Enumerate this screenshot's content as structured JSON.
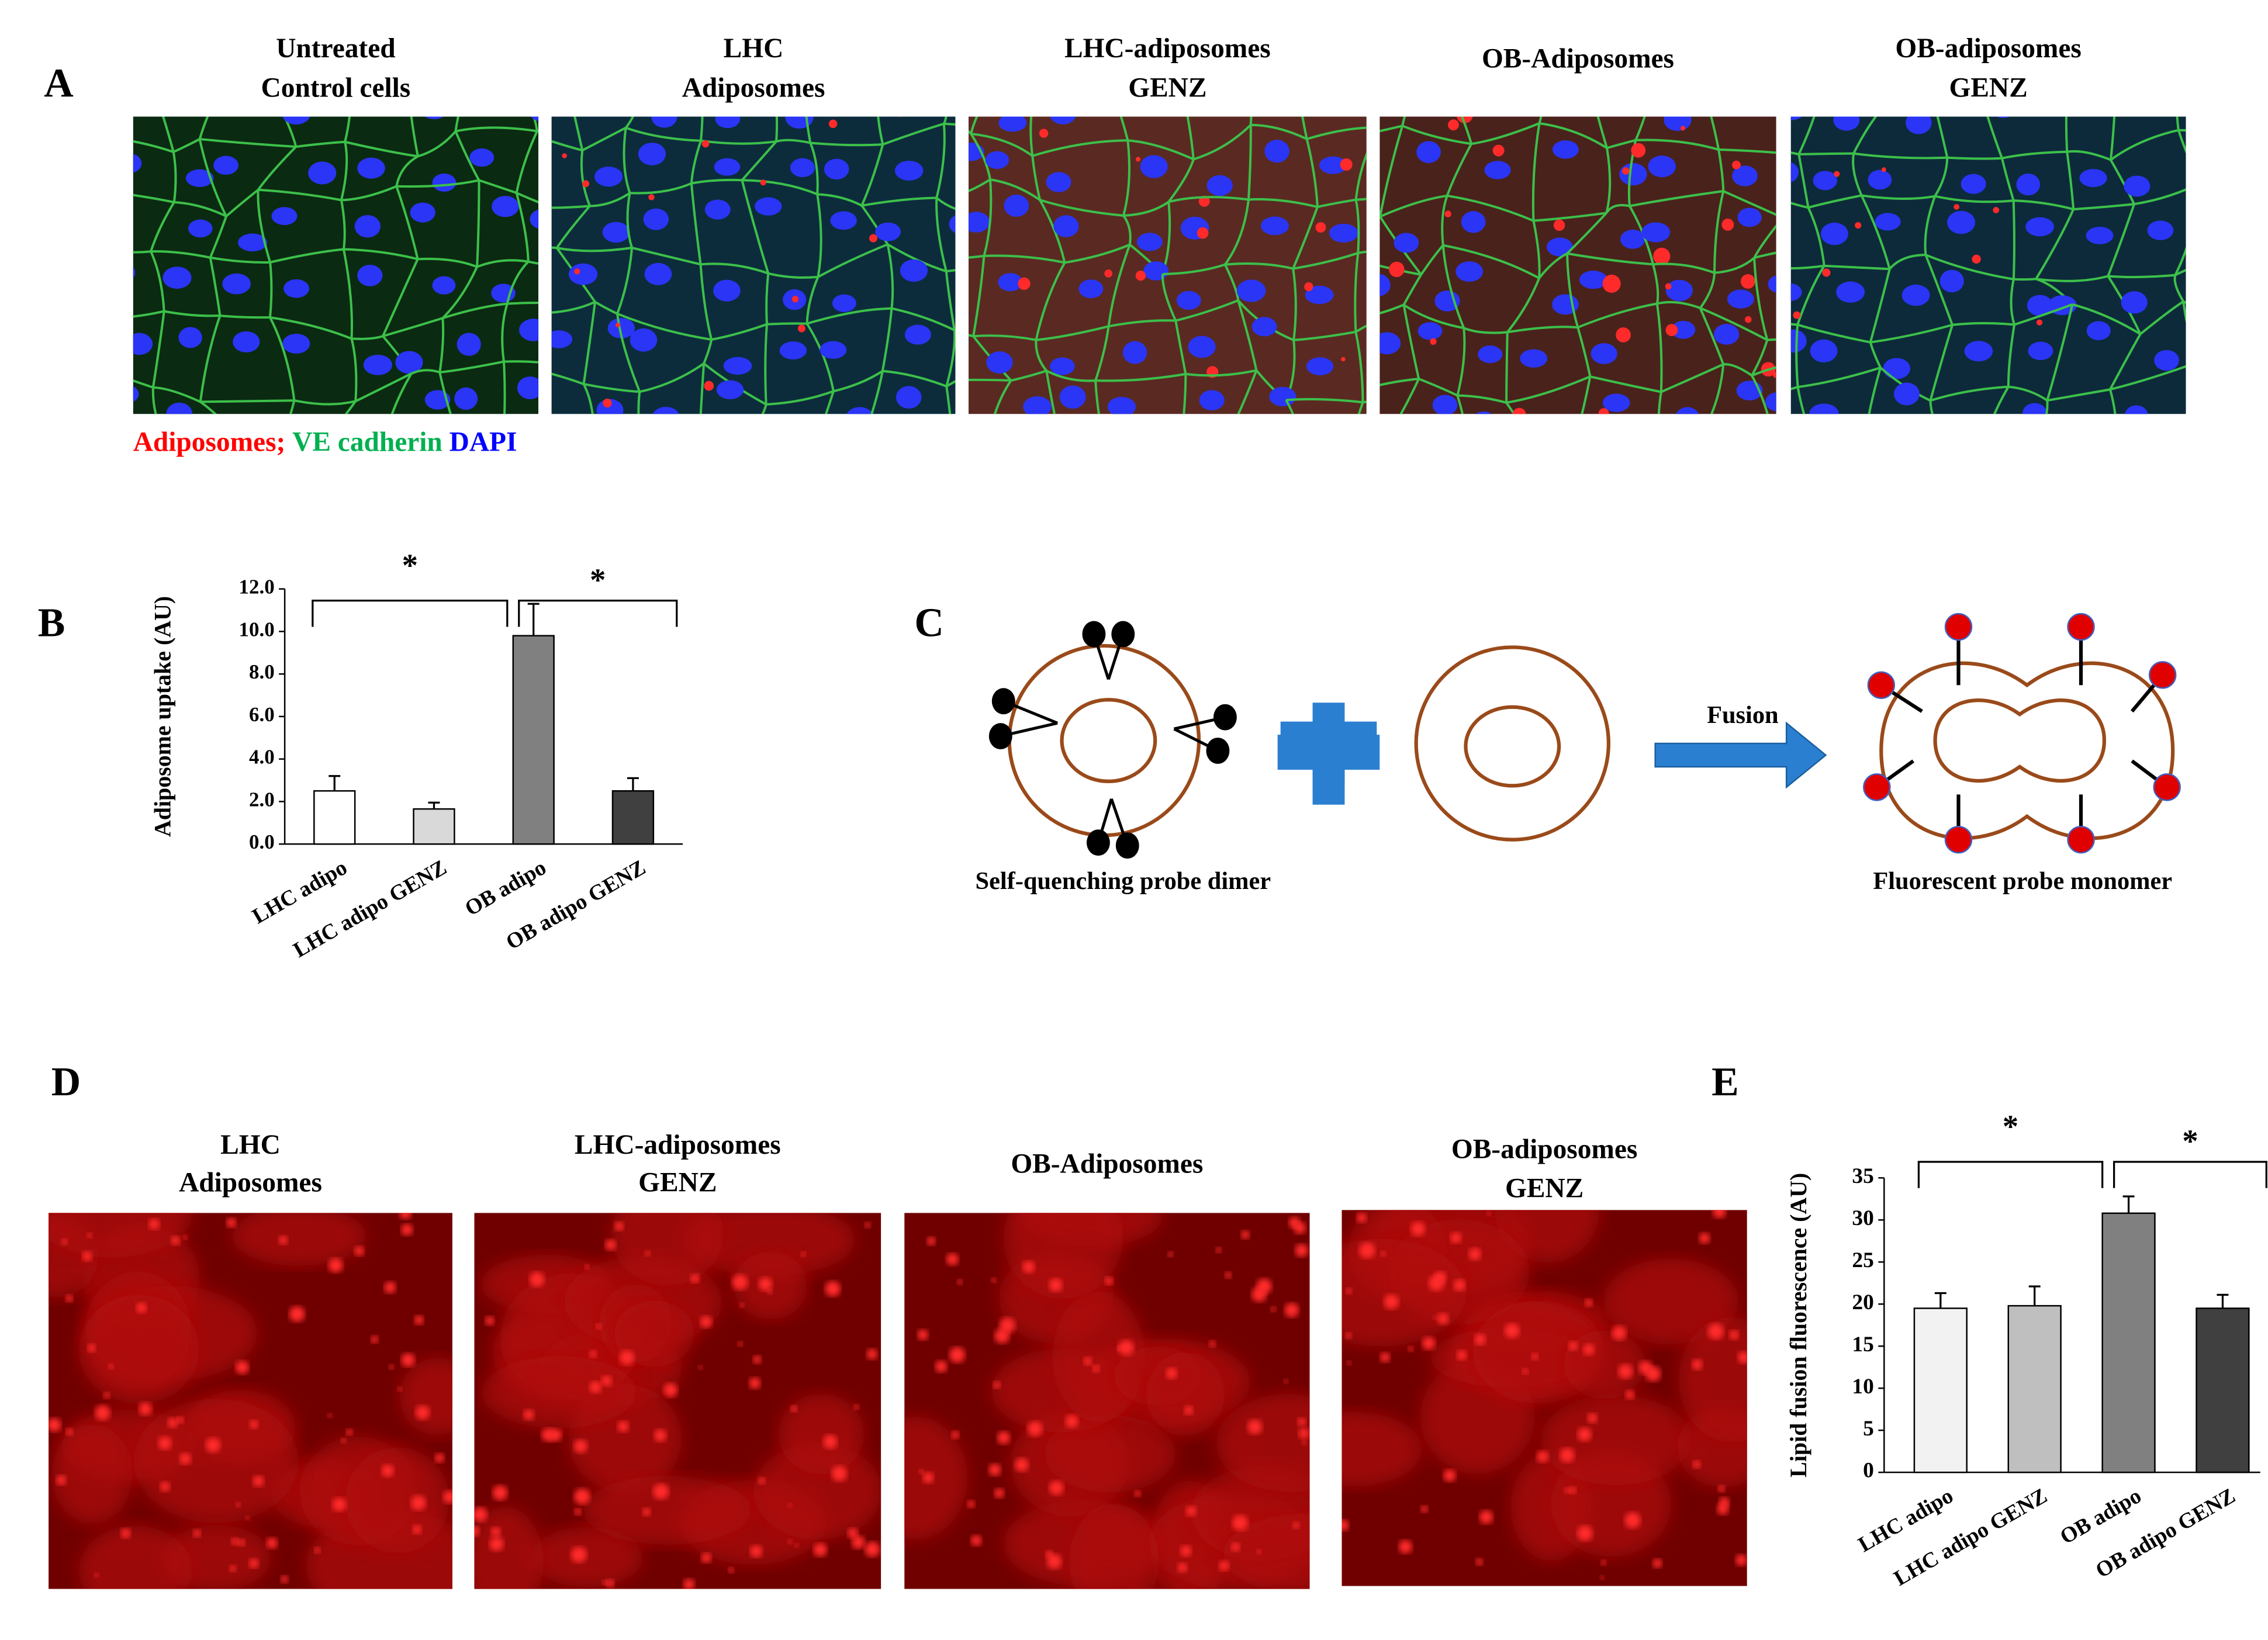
{
  "panel_labels": [
    "A",
    "B",
    "C",
    "D",
    "E"
  ],
  "panel_a": {
    "titles": [
      [
        "Untreated",
        "Control cells"
      ],
      [
        "LHC",
        "Adiposomes"
      ],
      [
        "LHC-adiposomes",
        "GENZ"
      ],
      [
        "OB-Adiposomes"
      ],
      [
        "OB-adiposomes",
        "GENZ"
      ]
    ],
    "legend": [
      {
        "text": "Adiposomes;",
        "color": "#ff0000"
      },
      {
        "text": "VE cadherin",
        "color": "#00b050"
      },
      {
        "text": "DAPI",
        "color": "#0000ff"
      }
    ]
  },
  "chart_data": [
    {
      "type": "bar",
      "ylabel": "Adiposome uptake (AU)",
      "categories": [
        "LHC adipo",
        "LHC adipo GENZ",
        "OB adipo",
        "OB adipo GENZ"
      ],
      "values": [
        2.5,
        1.65,
        9.8,
        2.5
      ],
      "errors": [
        0.7,
        0.3,
        1.5,
        0.6
      ],
      "colors": [
        "#ffffff",
        "#d9d9d9",
        "#808080",
        "#404040"
      ],
      "ylim": [
        0,
        12
      ],
      "yticks": [
        {
          "value": 0,
          "label": "0.0"
        },
        {
          "value": 2,
          "label": "2.0"
        },
        {
          "value": 4,
          "label": "4.0"
        },
        {
          "value": 6,
          "label": "6.0"
        },
        {
          "value": 8,
          "label": "8.0"
        },
        {
          "value": 10,
          "label": "10.0"
        },
        {
          "value": 12,
          "label": "12.0"
        }
      ],
      "annotations": [
        "*",
        "*"
      ]
    },
    {
      "type": "bar",
      "ylabel": "Lipid fusion fluorescence (AU)",
      "categories": [
        "LHC adipo",
        "LHC adipo GENZ",
        "OB adipo",
        "OB adipo GENZ"
      ],
      "values": [
        19.5,
        19.8,
        30.8,
        19.5
      ],
      "errors": [
        1.8,
        2.3,
        2,
        1.6
      ],
      "colors": [
        "#f2f2f2",
        "#bfbfbf",
        "#808080",
        "#404040"
      ],
      "ylim": [
        0,
        35
      ],
      "yticks": [
        0,
        5,
        10,
        15,
        20,
        25,
        30,
        35
      ],
      "annotations": [
        "*",
        "*"
      ]
    }
  ],
  "panel_c": {
    "arrow_label": "Fusion",
    "left_caption": "Self-quenching probe dimer",
    "right_caption": "Fluorescent probe monomer"
  },
  "panel_d": {
    "titles": [
      [
        "LHC",
        "Adiposomes"
      ],
      [
        "LHC-adiposomes",
        "GENZ"
      ],
      [
        "OB-Adiposomes"
      ],
      [
        "OB-adiposomes",
        "GENZ"
      ]
    ]
  }
}
